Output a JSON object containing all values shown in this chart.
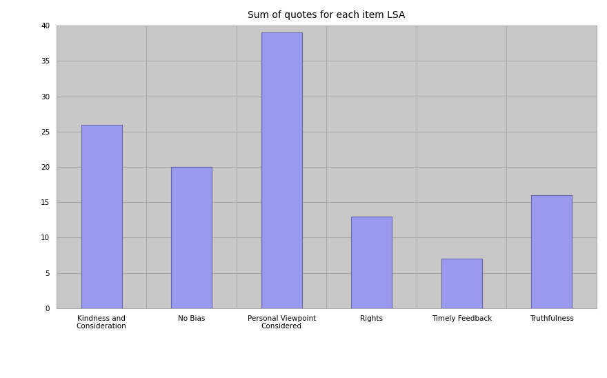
{
  "title": "Sum of quotes for each item LSA",
  "categories": [
    "Kindness and\nConsideration",
    "No Bias",
    "Personal Viewpoint\nConsidered",
    "Rights",
    "Timely Feedback",
    "Truthfulness"
  ],
  "values": [
    26,
    20,
    39,
    13,
    7,
    16
  ],
  "bar_color": "#9999ee",
  "bar_edgecolor": "#6666aa",
  "ylim": [
    0,
    40
  ],
  "yticks": [
    0,
    5,
    10,
    15,
    20,
    25,
    30,
    35,
    40
  ],
  "figure_bg_color": "#ffffff",
  "plot_bg_color": "#c8c8c8",
  "title_fontsize": 10,
  "tick_fontsize": 7.5,
  "grid_color": "#aaaaaa",
  "bar_width": 0.45
}
